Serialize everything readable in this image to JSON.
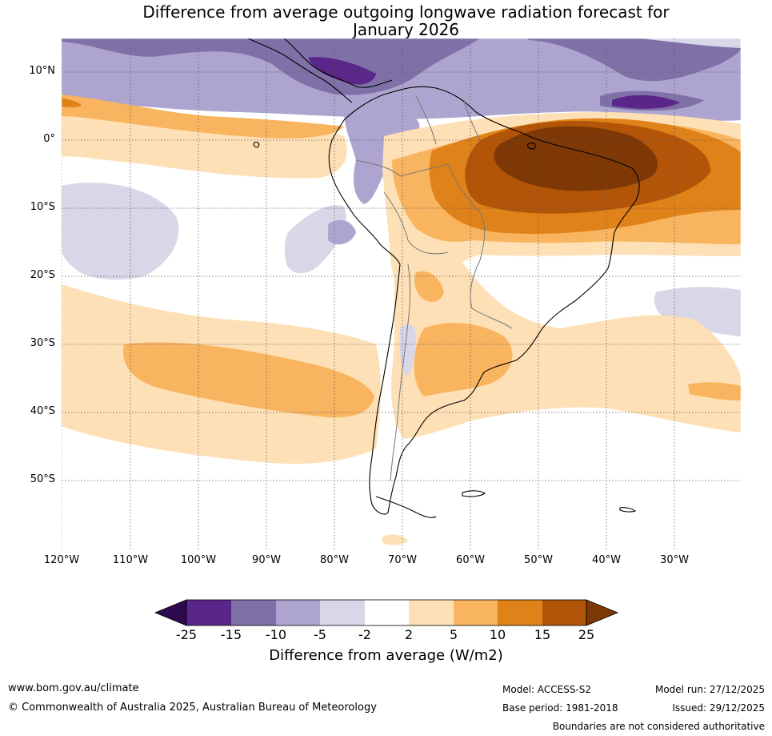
{
  "title": {
    "line1": "Difference from average outgoing longwave radiation forecast for",
    "line2": "January 2026"
  },
  "map": {
    "lat_labels": [
      "10°N",
      "0°",
      "10°S",
      "20°S",
      "30°S",
      "40°S",
      "50°S"
    ],
    "lon_labels": [
      "120°W",
      "110°W",
      "100°W",
      "90°W",
      "80°W",
      "70°W",
      "60°W",
      "50°W",
      "40°W",
      "30°W"
    ],
    "lat_range": [
      -60,
      15
    ],
    "lon_range": [
      -120,
      -20
    ]
  },
  "colorbar": {
    "ticks": [
      "-25",
      "-15",
      "-10",
      "-5",
      "-2",
      "2",
      "5",
      "10",
      "15",
      "25"
    ],
    "colors": [
      "#2d0a4e",
      "#5a2689",
      "#8070a8",
      "#ada5cf",
      "#d8d7e8",
      "#ffffff",
      "#fde0b5",
      "#f9b45f",
      "#e0821a",
      "#b25508",
      "#7d3806"
    ],
    "label": "Difference from average (W/m2)"
  },
  "footer": {
    "website": "www.bom.gov.au/climate",
    "copyright": "© Commonwealth of Australia 2025, Australian Bureau of Meteorology",
    "model": "Model: ACCESS-S2",
    "base_period": "Base period: 1981-2018",
    "model_run": "Model run: 27/12/2025",
    "issued": "Issued: 29/12/2025",
    "disclaimer": "Boundaries are not considered authoritative"
  }
}
